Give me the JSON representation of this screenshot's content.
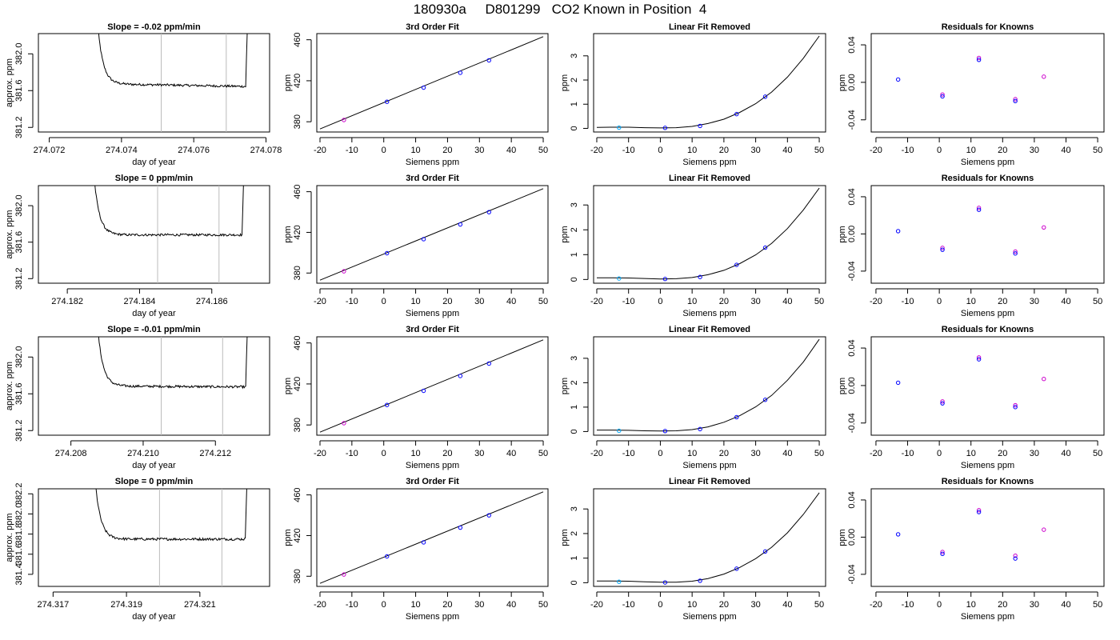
{
  "page_title": "180930a     D801299   CO2 Known in Position  4",
  "colors": {
    "line": "#000000",
    "marker": "#0000ff",
    "marker_alt": "#cc00cc",
    "marker_cyan": "#00aaff",
    "guide": "#bbbbbb"
  },
  "chart_data": [
    {
      "row": 0,
      "panel": "time",
      "type": "line",
      "title": "Slope =  -0.02  ppm/min",
      "xlabel": "day of year",
      "ylabel": "approx. ppm",
      "xlim": [
        274.0717,
        274.0781
      ],
      "ylim": [
        381.15,
        382.22
      ],
      "xticks": [
        274.072,
        274.074,
        274.076,
        274.078
      ],
      "xtick_labels": [
        "274.072",
        "274.074",
        "274.076",
        "274.078"
      ],
      "yticks": [
        381.2,
        381.6,
        382.0
      ],
      "ytick_labels": [
        "381.2",
        "381.6",
        "382.0"
      ],
      "vlines": [
        274.0751,
        274.0769
      ],
      "xstart": 274.0733,
      "xend": 274.0775,
      "plateau": 381.66,
      "tilt": -0.03
    },
    {
      "row": 0,
      "panel": "fit",
      "type": "scatter",
      "title": "3rd Order Fit",
      "xlabel": "Siemens ppm",
      "ylabel": "ppm",
      "xlim": [
        -21,
        51.5
      ],
      "ylim": [
        370,
        466
      ],
      "xticks": [
        -20,
        -10,
        0,
        10,
        20,
        30,
        40,
        50
      ],
      "xtick_labels": [
        "-20",
        "-10",
        "0",
        "10",
        "20",
        "30",
        "40",
        "50"
      ],
      "yticks": [
        380,
        420,
        460
      ],
      "ytick_labels": [
        "380",
        "420",
        "460"
      ],
      "line": {
        "x": [
          -20,
          50
        ],
        "y": [
          373,
          463
        ]
      },
      "points": [
        {
          "x": -12.5,
          "y": 381.7
        },
        {
          "x": 1,
          "y": 399.5
        },
        {
          "x": 12.5,
          "y": 413.3
        },
        {
          "x": 24,
          "y": 427.8
        },
        {
          "x": 33,
          "y": 439.9
        }
      ]
    },
    {
      "row": 0,
      "panel": "linear",
      "type": "scatter",
      "title": "Linear Fit Removed",
      "xlabel": "Siemens ppm",
      "ylabel": "ppm",
      "xlim": [
        -21,
        52
      ],
      "ylim": [
        -0.15,
        3.92
      ],
      "xticks": [
        -20,
        -10,
        0,
        10,
        20,
        30,
        40,
        50
      ],
      "xtick_labels": [
        "-20",
        "-10",
        "0",
        "10",
        "20",
        "30",
        "40",
        "50"
      ],
      "yticks": [
        0,
        1,
        2,
        3
      ],
      "ytick_labels": [
        "0",
        "1",
        "2",
        "3"
      ],
      "curve_x": [
        -20,
        -15,
        -10,
        -5,
        0,
        5,
        10,
        15,
        20,
        25,
        30,
        35,
        40,
        45,
        50
      ],
      "curve_y": [
        0.04,
        0.05,
        0.05,
        0.03,
        0.02,
        0.03,
        0.08,
        0.2,
        0.38,
        0.66,
        1.02,
        1.5,
        2.12,
        2.9,
        3.82
      ],
      "points": [
        {
          "x": -13,
          "y": 0.03
        },
        {
          "x": 1.5,
          "y": 0.02
        },
        {
          "x": 12.5,
          "y": 0.1
        },
        {
          "x": 24,
          "y": 0.59
        },
        {
          "x": 33,
          "y": 1.31
        }
      ]
    },
    {
      "row": 0,
      "panel": "resid",
      "type": "scatter",
      "title": "Residuals for Knowns",
      "xlabel": "Siemens ppm",
      "ylabel": "ppm",
      "xlim": [
        -21.5,
        52
      ],
      "ylim": [
        -0.053,
        0.052
      ],
      "xticks": [
        -20,
        -10,
        0,
        10,
        20,
        30,
        40,
        50
      ],
      "xtick_labels": [
        "-20",
        "-10",
        "0",
        "10",
        "20",
        "30",
        "40",
        "50"
      ],
      "yticks": [
        -0.04,
        0.0,
        0.04
      ],
      "ytick_labels": [
        "-0.04",
        "0.00",
        "0.04"
      ],
      "points": [
        {
          "x": -13,
          "y": 0.003
        },
        {
          "x": 1,
          "y": -0.013
        },
        {
          "x": 1,
          "y": -0.015
        },
        {
          "x": 12.5,
          "y": 0.026
        },
        {
          "x": 12.5,
          "y": 0.024
        },
        {
          "x": 24,
          "y": -0.018
        },
        {
          "x": 24,
          "y": -0.02
        },
        {
          "x": 33,
          "y": 0.006
        }
      ]
    },
    {
      "row": 1,
      "panel": "time",
      "type": "line",
      "title": "Slope =  0  ppm/min",
      "xlabel": "day of year",
      "ylabel": "approx. ppm",
      "xlim": [
        274.1812,
        274.1876
      ],
      "ylim": [
        381.15,
        382.22
      ],
      "xticks": [
        274.182,
        274.184,
        274.186
      ],
      "xtick_labels": [
        "274.182",
        "274.184",
        "274.186"
      ],
      "yticks": [
        381.2,
        381.6,
        382.0
      ],
      "ytick_labels": [
        "381.2",
        "381.6",
        "382.0"
      ],
      "vlines": [
        274.1845,
        274.1862
      ],
      "xstart": 274.1827,
      "xend": 274.1869,
      "plateau": 381.68,
      "tilt": 0
    },
    {
      "row": 1,
      "panel": "fit",
      "type": "scatter",
      "title": "3rd Order Fit",
      "xlabel": "Siemens ppm",
      "ylabel": "ppm",
      "xlim": [
        -21,
        51.5
      ],
      "ylim": [
        370,
        466
      ],
      "xticks": [
        -20,
        -10,
        0,
        10,
        20,
        30,
        40,
        50
      ],
      "xtick_labels": [
        "-20",
        "-10",
        "0",
        "10",
        "20",
        "30",
        "40",
        "50"
      ],
      "yticks": [
        380,
        420,
        460
      ],
      "ytick_labels": [
        "380",
        "420",
        "460"
      ],
      "line": {
        "x": [
          -20,
          50
        ],
        "y": [
          373,
          463
        ]
      },
      "points": [
        {
          "x": -12.5,
          "y": 381.7
        },
        {
          "x": 1,
          "y": 399.5
        },
        {
          "x": 12.5,
          "y": 413.3
        },
        {
          "x": 24,
          "y": 427.8
        },
        {
          "x": 33,
          "y": 439.9
        }
      ]
    },
    {
      "row": 1,
      "panel": "linear",
      "type": "scatter",
      "title": "Linear Fit Removed",
      "xlabel": "Siemens ppm",
      "ylabel": "ppm",
      "xlim": [
        -21,
        52
      ],
      "ylim": [
        -0.15,
        3.78
      ],
      "xticks": [
        -20,
        -10,
        0,
        10,
        20,
        30,
        40,
        50
      ],
      "xtick_labels": [
        "-20",
        "-10",
        "0",
        "10",
        "20",
        "30",
        "40",
        "50"
      ],
      "yticks": [
        0,
        1,
        2,
        3
      ],
      "ytick_labels": [
        "0",
        "1",
        "2",
        "3"
      ],
      "curve_x": [
        -20,
        -15,
        -10,
        -5,
        0,
        5,
        10,
        15,
        20,
        25,
        30,
        35,
        40,
        45,
        50
      ],
      "curve_y": [
        0.07,
        0.07,
        0.06,
        0.04,
        0.02,
        0.03,
        0.08,
        0.19,
        0.37,
        0.64,
        0.99,
        1.45,
        2.05,
        2.8,
        3.68
      ],
      "points": [
        {
          "x": -13,
          "y": 0.04
        },
        {
          "x": 1.5,
          "y": 0.02
        },
        {
          "x": 12.5,
          "y": 0.1
        },
        {
          "x": 24,
          "y": 0.59
        },
        {
          "x": 33,
          "y": 1.28
        }
      ]
    },
    {
      "row": 1,
      "panel": "resid",
      "type": "scatter",
      "title": "Residuals for Knowns",
      "xlabel": "Siemens ppm",
      "ylabel": "ppm",
      "xlim": [
        -21.5,
        52
      ],
      "ylim": [
        -0.053,
        0.052
      ],
      "xticks": [
        -20,
        -10,
        0,
        10,
        20,
        30,
        40,
        50
      ],
      "xtick_labels": [
        "-20",
        "-10",
        "0",
        "10",
        "20",
        "30",
        "40",
        "50"
      ],
      "yticks": [
        -0.04,
        0.0,
        0.04
      ],
      "ytick_labels": [
        "-0.04",
        "0.00",
        "0.04"
      ],
      "points": [
        {
          "x": -13,
          "y": 0.003
        },
        {
          "x": 1,
          "y": -0.015
        },
        {
          "x": 1,
          "y": -0.017
        },
        {
          "x": 12.5,
          "y": 0.028
        },
        {
          "x": 12.5,
          "y": 0.026
        },
        {
          "x": 24,
          "y": -0.019
        },
        {
          "x": 24,
          "y": -0.021
        },
        {
          "x": 33,
          "y": 0.007
        }
      ]
    },
    {
      "row": 2,
      "panel": "time",
      "type": "line",
      "title": "Slope =  -0.01  ppm/min",
      "xlabel": "day of year",
      "ylabel": "approx. ppm",
      "xlim": [
        274.2071,
        274.2135
      ],
      "ylim": [
        381.15,
        382.22
      ],
      "xticks": [
        274.208,
        274.21,
        274.212
      ],
      "xtick_labels": [
        "274.208",
        "274.210",
        "274.212"
      ],
      "yticks": [
        381.2,
        381.6,
        382.0
      ],
      "ytick_labels": [
        "381.2",
        "381.6",
        "382.0"
      ],
      "vlines": [
        274.2105,
        274.2122
      ],
      "xstart": 274.2087,
      "xend": 274.2129,
      "plateau": 381.68,
      "tilt": -0.01
    },
    {
      "row": 2,
      "panel": "fit",
      "type": "scatter",
      "title": "3rd Order Fit",
      "xlabel": "Siemens ppm",
      "ylabel": "ppm",
      "xlim": [
        -21,
        51.5
      ],
      "ylim": [
        370,
        466
      ],
      "xticks": [
        -20,
        -10,
        0,
        10,
        20,
        30,
        40,
        50
      ],
      "xtick_labels": [
        "-20",
        "-10",
        "0",
        "10",
        "20",
        "30",
        "40",
        "50"
      ],
      "yticks": [
        380,
        420,
        460
      ],
      "ytick_labels": [
        "380",
        "420",
        "460"
      ],
      "line": {
        "x": [
          -20,
          50
        ],
        "y": [
          373,
          463
        ]
      },
      "points": [
        {
          "x": -12.5,
          "y": 381.7
        },
        {
          "x": 1,
          "y": 399.5
        },
        {
          "x": 12.5,
          "y": 413.3
        },
        {
          "x": 24,
          "y": 427.8
        },
        {
          "x": 33,
          "y": 439.9
        }
      ]
    },
    {
      "row": 2,
      "panel": "linear",
      "type": "scatter",
      "title": "Linear Fit Removed",
      "xlabel": "Siemens ppm",
      "ylabel": "ppm",
      "xlim": [
        -21,
        52
      ],
      "ylim": [
        -0.15,
        3.88
      ],
      "xticks": [
        -20,
        -10,
        0,
        10,
        20,
        30,
        40,
        50
      ],
      "xtick_labels": [
        "-20",
        "-10",
        "0",
        "10",
        "20",
        "30",
        "40",
        "50"
      ],
      "yticks": [
        0,
        1,
        2,
        3
      ],
      "ytick_labels": [
        "0",
        "1",
        "2",
        "3"
      ],
      "curve_x": [
        -20,
        -15,
        -10,
        -5,
        0,
        5,
        10,
        15,
        20,
        25,
        30,
        35,
        40,
        45,
        50
      ],
      "curve_y": [
        0.06,
        0.06,
        0.05,
        0.03,
        0.02,
        0.03,
        0.08,
        0.19,
        0.38,
        0.65,
        1.01,
        1.48,
        2.1,
        2.85,
        3.78
      ],
      "points": [
        {
          "x": -13,
          "y": 0.03
        },
        {
          "x": 1.5,
          "y": 0.02
        },
        {
          "x": 12.5,
          "y": 0.1
        },
        {
          "x": 24,
          "y": 0.59
        },
        {
          "x": 33,
          "y": 1.3
        }
      ]
    },
    {
      "row": 2,
      "panel": "resid",
      "type": "scatter",
      "title": "Residuals for Knowns",
      "xlabel": "Siemens ppm",
      "ylabel": "ppm",
      "xlim": [
        -21.5,
        52
      ],
      "ylim": [
        -0.053,
        0.052
      ],
      "xticks": [
        -20,
        -10,
        0,
        10,
        20,
        30,
        40,
        50
      ],
      "xtick_labels": [
        "-20",
        "-10",
        "0",
        "10",
        "20",
        "30",
        "40",
        "50"
      ],
      "yticks": [
        -0.04,
        0.0,
        0.04
      ],
      "ytick_labels": [
        "-0.04",
        "0.00",
        "0.04"
      ],
      "points": [
        {
          "x": -13,
          "y": 0.003
        },
        {
          "x": 1,
          "y": -0.017
        },
        {
          "x": 1,
          "y": -0.019
        },
        {
          "x": 12.5,
          "y": 0.03
        },
        {
          "x": 12.5,
          "y": 0.028
        },
        {
          "x": 24,
          "y": -0.021
        },
        {
          "x": 24,
          "y": -0.023
        },
        {
          "x": 33,
          "y": 0.007
        }
      ]
    },
    {
      "row": 3,
      "panel": "time",
      "type": "line",
      "title": "Slope =  0  ppm/min",
      "xlabel": "day of year",
      "ylabel": "approx. ppm",
      "xlim": [
        274.3166,
        274.3229
      ],
      "ylim": [
        381.28,
        382.25
      ],
      "xticks": [
        274.317,
        274.319,
        274.321
      ],
      "xtick_labels": [
        "274.317",
        "274.319",
        "274.321"
      ],
      "yticks": [
        381.4,
        381.6,
        381.8,
        382.0,
        382.2
      ],
      "ytick_labels": [
        "381.4",
        "381.6",
        "381.8",
        "382.0",
        "382.2"
      ],
      "vlines": [
        274.3199,
        274.3216
      ],
      "xstart": 274.3181,
      "xend": 274.3223,
      "plateau": 381.75,
      "tilt": 0
    },
    {
      "row": 3,
      "panel": "fit",
      "type": "scatter",
      "title": "3rd Order Fit",
      "xlabel": "Siemens ppm",
      "ylabel": "ppm",
      "xlim": [
        -21,
        51.5
      ],
      "ylim": [
        370,
        466
      ],
      "xticks": [
        -20,
        -10,
        0,
        10,
        20,
        30,
        40,
        50
      ],
      "xtick_labels": [
        "-20",
        "-10",
        "0",
        "10",
        "20",
        "30",
        "40",
        "50"
      ],
      "yticks": [
        380,
        420,
        460
      ],
      "ytick_labels": [
        "380",
        "420",
        "460"
      ],
      "line": {
        "x": [
          -20,
          50
        ],
        "y": [
          373,
          463
        ]
      },
      "points": [
        {
          "x": -12.5,
          "y": 381.7
        },
        {
          "x": 1,
          "y": 399.5
        },
        {
          "x": 12.5,
          "y": 413.3
        },
        {
          "x": 24,
          "y": 427.8
        },
        {
          "x": 33,
          "y": 439.9
        }
      ]
    },
    {
      "row": 3,
      "panel": "linear",
      "type": "scatter",
      "title": "Linear Fit Removed",
      "xlabel": "Siemens ppm",
      "ylabel": "ppm",
      "xlim": [
        -21,
        52
      ],
      "ylim": [
        -0.15,
        3.82
      ],
      "xticks": [
        -20,
        -10,
        0,
        10,
        20,
        30,
        40,
        50
      ],
      "xtick_labels": [
        "-20",
        "-10",
        "0",
        "10",
        "20",
        "30",
        "40",
        "50"
      ],
      "yticks": [
        0,
        1,
        2,
        3
      ],
      "ytick_labels": [
        "0",
        "1",
        "2",
        "3"
      ],
      "curve_x": [
        -20,
        -15,
        -10,
        -5,
        0,
        5,
        10,
        15,
        20,
        25,
        30,
        35,
        40,
        45,
        50
      ],
      "curve_y": [
        0.07,
        0.07,
        0.06,
        0.04,
        0.02,
        0.02,
        0.06,
        0.17,
        0.35,
        0.62,
        0.98,
        1.44,
        2.03,
        2.78,
        3.66
      ],
      "points": [
        {
          "x": -13,
          "y": 0.04
        },
        {
          "x": 1.5,
          "y": 0.01
        },
        {
          "x": 12.5,
          "y": 0.08
        },
        {
          "x": 24,
          "y": 0.57
        },
        {
          "x": 33,
          "y": 1.27
        }
      ]
    },
    {
      "row": 3,
      "panel": "resid",
      "type": "scatter",
      "title": "Residuals for Knowns",
      "xlabel": "Siemens ppm",
      "ylabel": "ppm",
      "xlim": [
        -21.5,
        52
      ],
      "ylim": [
        -0.053,
        0.052
      ],
      "xticks": [
        -20,
        -10,
        0,
        10,
        20,
        30,
        40,
        50
      ],
      "xtick_labels": [
        "-20",
        "-10",
        "0",
        "10",
        "20",
        "30",
        "40",
        "50"
      ],
      "yticks": [
        -0.04,
        0.0,
        0.04
      ],
      "ytick_labels": [
        "-0.04",
        "0.00",
        "0.04"
      ],
      "points": [
        {
          "x": -13,
          "y": 0.003
        },
        {
          "x": 1,
          "y": -0.016
        },
        {
          "x": 1,
          "y": -0.018
        },
        {
          "x": 12.5,
          "y": 0.029
        },
        {
          "x": 12.5,
          "y": 0.027
        },
        {
          "x": 24,
          "y": -0.02
        },
        {
          "x": 24,
          "y": -0.023
        },
        {
          "x": 33,
          "y": 0.008
        }
      ]
    }
  ]
}
